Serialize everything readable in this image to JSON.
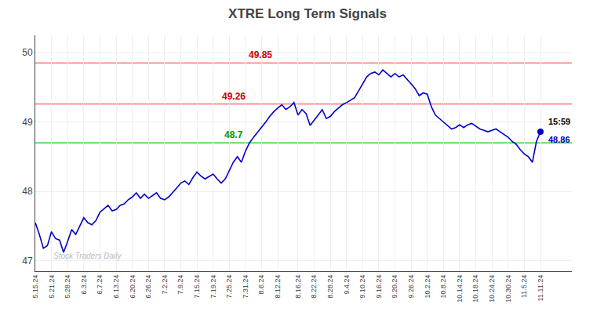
{
  "chart_data": {
    "type": "line",
    "title": "XTRE Long Term Signals",
    "categories": [
      "5.15.24",
      null,
      null,
      null,
      "5.21.24",
      null,
      null,
      null,
      "5.28.24",
      null,
      null,
      null,
      "6.3.24",
      null,
      null,
      null,
      "6.7.24",
      null,
      null,
      null,
      "6.13.24",
      null,
      null,
      null,
      "6.20.24",
      null,
      null,
      null,
      "6.26.24",
      null,
      null,
      null,
      "7.2.24",
      null,
      null,
      null,
      "7.9.24",
      null,
      null,
      null,
      "7.15.24",
      null,
      null,
      null,
      "7.19.24",
      null,
      null,
      null,
      "7.25.24",
      null,
      null,
      null,
      "7.31.24",
      null,
      null,
      null,
      "8.6.24",
      null,
      null,
      null,
      "8.12.24",
      null,
      null,
      null,
      null,
      "8.16.24",
      null,
      null,
      null,
      "8.22.24",
      null,
      null,
      null,
      "8.28.24",
      null,
      null,
      null,
      "9.4.24",
      null,
      null,
      null,
      "9.10.24",
      null,
      null,
      null,
      "9.16.24",
      null,
      null,
      null,
      "9.20.24",
      null,
      null,
      null,
      "9.26.24",
      null,
      null,
      null,
      "10.2.24",
      null,
      null,
      null,
      "10.8.24",
      null,
      null,
      null,
      "10.14.24",
      null,
      null,
      null,
      "10.18.24",
      null,
      null,
      null,
      "10.24.24",
      null,
      null,
      null,
      "10.30.24",
      null,
      null,
      null,
      "11.5.24",
      null,
      null,
      null,
      "11.11.24"
    ],
    "values": [
      47.55,
      47.38,
      47.18,
      47.22,
      47.42,
      47.32,
      47.3,
      47.12,
      47.28,
      47.45,
      47.38,
      47.5,
      47.62,
      47.55,
      47.52,
      47.58,
      47.7,
      47.75,
      47.8,
      47.72,
      47.74,
      47.8,
      47.82,
      47.88,
      47.92,
      47.98,
      47.9,
      47.96,
      47.9,
      47.94,
      47.98,
      47.9,
      47.88,
      47.92,
      47.98,
      48.05,
      48.12,
      48.15,
      48.1,
      48.2,
      48.28,
      48.22,
      48.18,
      48.22,
      48.25,
      48.18,
      48.12,
      48.18,
      48.3,
      48.42,
      48.5,
      48.42,
      48.58,
      48.7,
      48.78,
      48.85,
      48.92,
      49.0,
      49.08,
      49.15,
      49.2,
      49.25,
      49.18,
      49.22,
      49.28,
      49.1,
      49.18,
      49.12,
      48.95,
      49.02,
      49.1,
      49.18,
      49.05,
      49.08,
      49.15,
      49.2,
      49.25,
      49.28,
      49.32,
      49.35,
      49.45,
      49.55,
      49.65,
      49.7,
      49.72,
      49.68,
      49.75,
      49.7,
      49.65,
      49.7,
      49.65,
      49.68,
      49.62,
      49.55,
      49.48,
      49.38,
      49.42,
      49.4,
      49.22,
      49.1,
      49.05,
      49.0,
      48.95,
      48.9,
      48.92,
      48.96,
      48.92,
      48.96,
      48.98,
      48.94,
      48.9,
      48.88,
      48.86,
      48.88,
      48.9,
      48.86,
      48.82,
      48.78,
      48.72,
      48.68,
      48.6,
      48.54,
      48.5,
      48.42,
      48.72,
      48.86
    ],
    "color": "#0000cc",
    "ylim": [
      46.85,
      50.25
    ],
    "yticks": [
      47,
      48,
      49,
      50
    ],
    "grid": true,
    "reference_lines": [
      {
        "value": 49.85,
        "label": "49.85",
        "color": "#ff8888",
        "label_color": "#cc0000"
      },
      {
        "value": 49.26,
        "label": "49.26",
        "color": "#ff8888",
        "label_color": "#cc0000"
      },
      {
        "value": 48.7,
        "label": "48.7",
        "color": "#33cc33",
        "label_color": "#009900"
      }
    ],
    "end_labels": [
      "15:59",
      "48.86"
    ],
    "watermark": "Stock Traders Daily"
  }
}
